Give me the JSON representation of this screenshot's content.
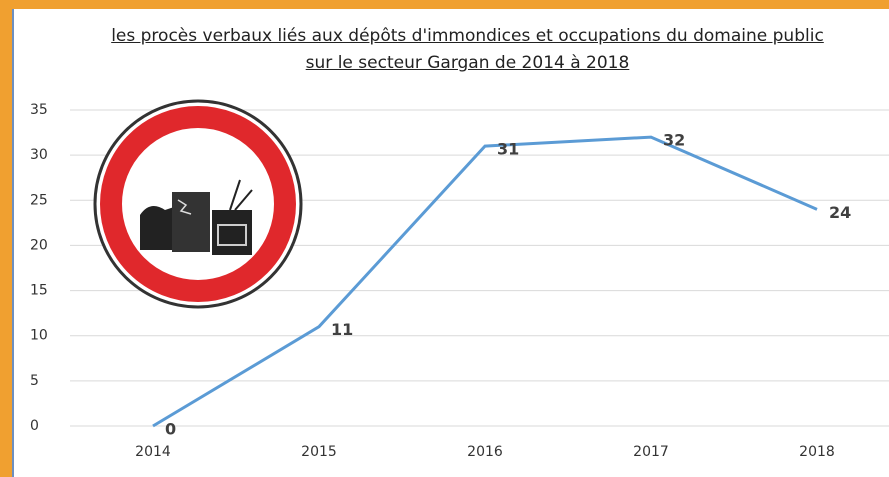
{
  "chart_data": {
    "type": "line",
    "title": "les procès verbaux liés aux dépôts d'immondices et occupations du domaine public sur le secteur Gargan de 2014 à 2018",
    "categories": [
      "2014",
      "2015",
      "2016",
      "2017",
      "2018"
    ],
    "values": [
      0,
      11,
      31,
      32,
      24
    ],
    "color": "#5b9bd5",
    "ylim": [
      0,
      35
    ],
    "yticks": [
      0,
      5,
      10,
      15,
      20,
      25,
      30,
      35
    ],
    "grid": true
  }
}
